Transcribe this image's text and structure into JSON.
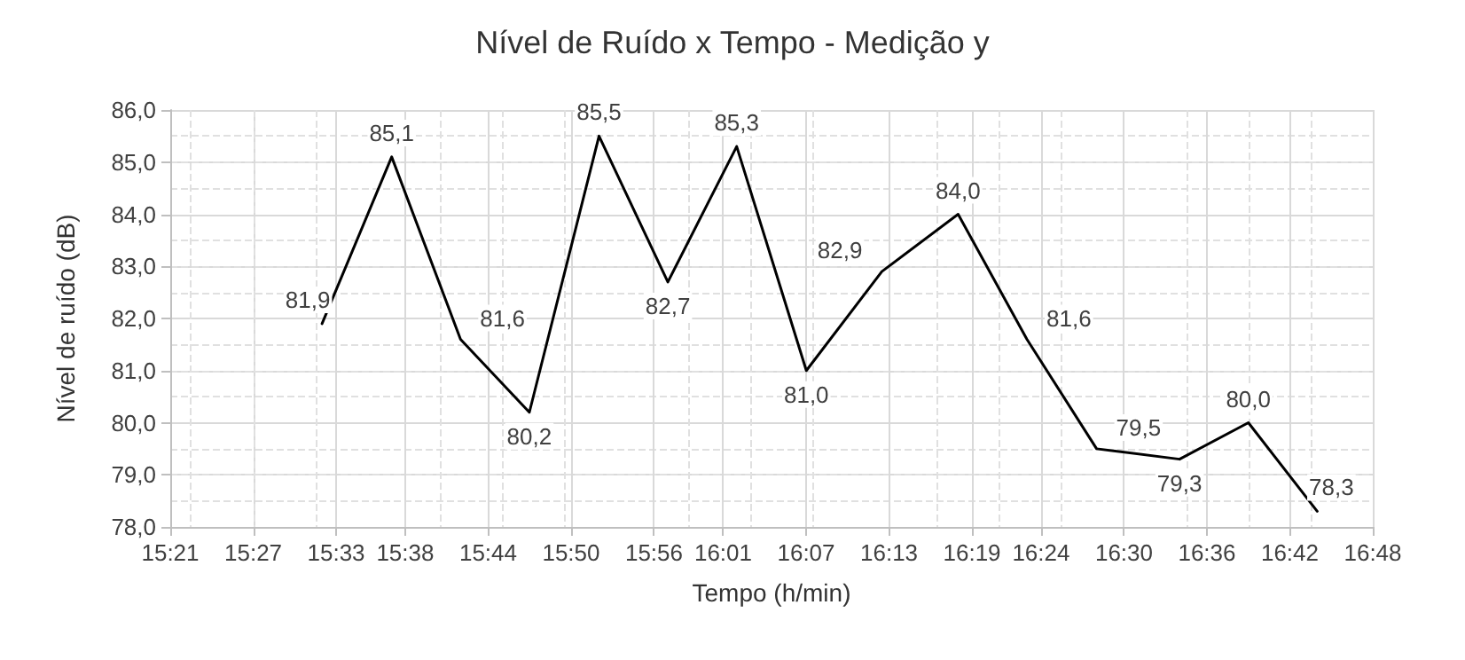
{
  "chart_data": {
    "type": "line",
    "title": "Nível de Ruído x Tempo - Medição y",
    "xlabel": "Tempo (h/min)",
    "ylabel": "Nível de ruído (dB)",
    "x": [
      15.533,
      15.617,
      15.7,
      15.783,
      15.867,
      15.95,
      16.033,
      16.117,
      16.208,
      16.3,
      16.383,
      16.467,
      16.567,
      16.65,
      16.733
    ],
    "series": [
      {
        "color": "#000000",
        "values": [
          81.9,
          85.1,
          81.6,
          80.2,
          85.5,
          82.7,
          85.3,
          81.0,
          82.9,
          84.0,
          81.6,
          79.5,
          79.3,
          80.0,
          78.3
        ],
        "value_labels": [
          "81,9",
          "85,1",
          "81,6",
          "80,2",
          "85,5",
          "82,7",
          "85,3",
          "81,0",
          "82,9",
          "84,0",
          "81,6",
          "79,5",
          "79,3",
          "80,0",
          "78,3"
        ]
      }
    ],
    "xlim": [
      15.35,
      16.8
    ],
    "xticks": [
      {
        "value": 15.35,
        "label": "15:21"
      },
      {
        "value": 15.45,
        "label": "15:27"
      },
      {
        "value": 15.55,
        "label": "15:33"
      },
      {
        "value": 15.6333,
        "label": "15:38"
      },
      {
        "value": 15.7333,
        "label": "15:44"
      },
      {
        "value": 15.8333,
        "label": "15:50"
      },
      {
        "value": 15.9333,
        "label": "15:56"
      },
      {
        "value": 16.0167,
        "label": "16:01"
      },
      {
        "value": 16.1167,
        "label": "16:07"
      },
      {
        "value": 16.2167,
        "label": "16:13"
      },
      {
        "value": 16.3167,
        "label": "16:19"
      },
      {
        "value": 16.4,
        "label": "16:24"
      },
      {
        "value": 16.5,
        "label": "16:30"
      },
      {
        "value": 16.6,
        "label": "16:36"
      },
      {
        "value": 16.7,
        "label": "16:42"
      },
      {
        "value": 16.8,
        "label": "16:48"
      }
    ],
    "ylim": [
      78,
      86
    ],
    "yticks": [
      {
        "value": 78,
        "label": "78,0"
      },
      {
        "value": 79,
        "label": "79,0"
      },
      {
        "value": 80,
        "label": "80,0"
      },
      {
        "value": 81,
        "label": "81,0"
      },
      {
        "value": 82,
        "label": "82,0"
      },
      {
        "value": 83,
        "label": "83,0"
      },
      {
        "value": 84,
        "label": "84,0"
      },
      {
        "value": 85,
        "label": "85,0"
      },
      {
        "value": 86,
        "label": "86,0"
      }
    ],
    "grid": true,
    "marker": "none",
    "line_style": "solid"
  }
}
